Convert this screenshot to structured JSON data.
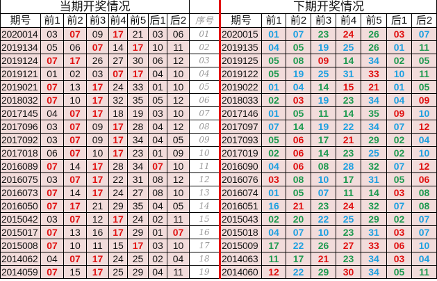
{
  "left": {
    "title": "当期开奖情况",
    "headers": [
      "期号",
      "前1",
      "前2",
      "前3",
      "前4",
      "前5",
      "后1",
      "后2"
    ],
    "seq_header": "序号",
    "highlight_numbers": [
      "07",
      "17"
    ],
    "highlight_color": "#E01010",
    "rows": [
      [
        "2020014",
        "03",
        "07",
        "09",
        "17",
        "21",
        "03",
        "06"
      ],
      [
        "2019134",
        "05",
        "06",
        "07",
        "14",
        "17",
        "10",
        "11"
      ],
      [
        "2019124",
        "07",
        "17",
        "26",
        "27",
        "30",
        "06",
        "12"
      ],
      [
        "2019121",
        "01",
        "02",
        "03",
        "07",
        "17",
        "04",
        "10"
      ],
      [
        "2019021",
        "07",
        "13",
        "17",
        "24",
        "33",
        "01",
        "10"
      ],
      [
        "2018032",
        "07",
        "10",
        "17",
        "32",
        "35",
        "05",
        "12"
      ],
      [
        "2017145",
        "04",
        "07",
        "17",
        "18",
        "19",
        "03",
        "10"
      ],
      [
        "2017096",
        "03",
        "07",
        "09",
        "17",
        "28",
        "04",
        "12"
      ],
      [
        "2017092",
        "03",
        "07",
        "09",
        "17",
        "34",
        "04",
        "05"
      ],
      [
        "2017018",
        "06",
        "07",
        "10",
        "17",
        "23",
        "01",
        "09"
      ],
      [
        "2016089",
        "07",
        "14",
        "17",
        "28",
        "34",
        "07",
        "10"
      ],
      [
        "2016075",
        "03",
        "07",
        "17",
        "22",
        "31",
        "08",
        "12"
      ],
      [
        "2016073",
        "07",
        "14",
        "17",
        "24",
        "27",
        "08",
        "10"
      ],
      [
        "2016050",
        "07",
        "17",
        "21",
        "29",
        "35",
        "04",
        "05"
      ],
      [
        "2015042",
        "03",
        "07",
        "12",
        "17",
        "24",
        "02",
        "11"
      ],
      [
        "2015017",
        "07",
        "13",
        "16",
        "17",
        "29",
        "01",
        "07"
      ],
      [
        "2015008",
        "07",
        "10",
        "11",
        "15",
        "17",
        "03",
        "10"
      ],
      [
        "2014062",
        "04",
        "07",
        "17",
        "24",
        "25",
        "02",
        "04"
      ],
      [
        "2014059",
        "07",
        "15",
        "17",
        "25",
        "29",
        "04",
        "11"
      ]
    ],
    "seq": [
      "01",
      "02",
      "03",
      "04",
      "05",
      "06",
      "07",
      "08",
      "09",
      "10",
      "11",
      "12",
      "13",
      "14",
      "15",
      "16",
      "17",
      "18",
      "19"
    ]
  },
  "right": {
    "title": "下期开奖情况",
    "headers": [
      "期号",
      "前1",
      "前2",
      "前3",
      "前4",
      "前5",
      "后1",
      "后2"
    ],
    "mod3_colors": {
      "0": "#E01010",
      "1": "#1EA0E0",
      "2": "#1E9A50"
    },
    "rows": [
      [
        "2020015",
        "01",
        "07",
        "23",
        "24",
        "26",
        "03",
        "07"
      ],
      [
        "2019135",
        "04",
        "05",
        "19",
        "25",
        "26",
        "01",
        "11"
      ],
      [
        "2019125",
        "05",
        "08",
        "09",
        "14",
        "34",
        "02",
        "05"
      ],
      [
        "2019122",
        "05",
        "19",
        "25",
        "31",
        "33",
        "10",
        "11"
      ],
      [
        "2019022",
        "01",
        "04",
        "14",
        "15",
        "21",
        "01",
        "05"
      ],
      [
        "2018033",
        "02",
        "03",
        "19",
        "23",
        "34",
        "04",
        "09"
      ],
      [
        "2017146",
        "01",
        "05",
        "11",
        "14",
        "35",
        "09",
        "10"
      ],
      [
        "2017097",
        "07",
        "14",
        "19",
        "22",
        "34",
        "07",
        "12"
      ],
      [
        "2017093",
        "05",
        "06",
        "17",
        "21",
        "29",
        "02",
        "04"
      ],
      [
        "2017019",
        "02",
        "06",
        "14",
        "23",
        "25",
        "02",
        "10"
      ],
      [
        "2016090",
        "04",
        "06",
        "08",
        "28",
        "32",
        "07",
        "12"
      ],
      [
        "2016076",
        "03",
        "08",
        "10",
        "17",
        "31",
        "05",
        "06"
      ],
      [
        "2016074",
        "01",
        "05",
        "07",
        "11",
        "14",
        "03",
        "08"
      ],
      [
        "2016051",
        "16",
        "21",
        "23",
        "24",
        "32",
        "07",
        "08"
      ],
      [
        "2015043",
        "02",
        "20",
        "22",
        "25",
        "29",
        "02",
        "07"
      ],
      [
        "2015018",
        "04",
        "07",
        "10",
        "23",
        "31",
        "03",
        "07"
      ],
      [
        "2015009",
        "17",
        "22",
        "26",
        "27",
        "33",
        "06",
        "10"
      ],
      [
        "2014063",
        "11",
        "17",
        "21",
        "23",
        "34",
        "03",
        "04"
      ],
      [
        "2014060",
        "12",
        "22",
        "29",
        "30",
        "34",
        "05",
        "11"
      ]
    ]
  }
}
